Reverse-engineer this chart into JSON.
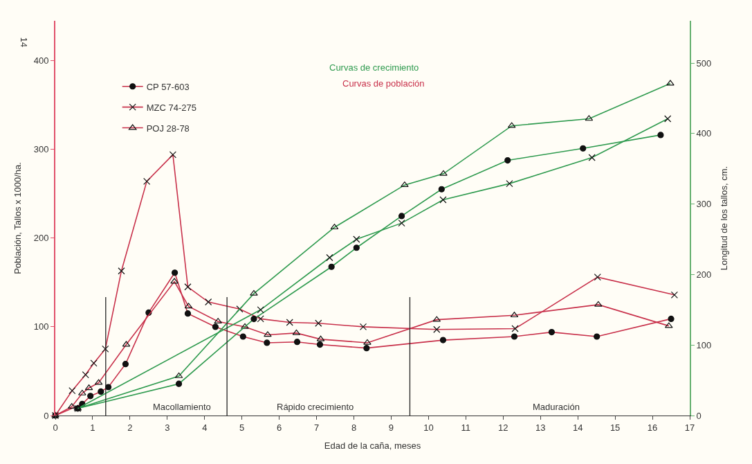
{
  "chart_data": {
    "type": "line",
    "xlabel": "Edad de la caña, meses",
    "ylabel": "Población, Tallos x 1000/ha.",
    "y2label": "Longitud de los tallos, cm.",
    "xlim": [
      0,
      17
    ],
    "xticks": [
      0,
      1,
      2,
      3,
      4,
      5,
      6,
      7,
      8,
      9,
      10,
      11,
      12,
      13,
      14,
      15,
      16,
      17
    ],
    "ylim": [
      0,
      445
    ],
    "yticks": [
      0,
      100,
      200,
      300,
      400
    ],
    "y2lim": [
      0,
      560
    ],
    "y2ticks": [
      0,
      100,
      200,
      300,
      400,
      500
    ],
    "grid": false,
    "legend": "top left",
    "line_style": "solid",
    "series": [
      {
        "name": "CP 57-603",
        "color": "#c8304a",
        "marker": "circle",
        "x": [
          0,
          0.72,
          0.94,
          1.22,
          1.42,
          1.88,
          2.5,
          3.2,
          3.55,
          4.29,
          5.03,
          5.67,
          6.48,
          7.09,
          8.34,
          10.39,
          12.3,
          13.3,
          14.51,
          16.5
        ],
        "values": [
          0,
          13,
          22,
          27,
          32,
          58,
          116,
          161,
          115,
          100,
          89,
          82,
          83,
          80,
          76,
          85,
          89,
          94,
          89,
          109
        ]
      },
      {
        "name": "MZC 74-275",
        "color": "#c8304a",
        "marker": "cross",
        "x": [
          0,
          0.45,
          0.81,
          1.03,
          1.34,
          1.77,
          2.45,
          3.15,
          3.55,
          4.1,
          4.94,
          5.5,
          6.28,
          7.05,
          8.25,
          10.22,
          12.32,
          14.53,
          16.59
        ],
        "values": [
          0,
          28,
          46,
          59,
          75,
          163,
          264,
          294,
          145,
          128,
          120,
          109,
          105,
          104,
          100,
          97,
          98,
          156,
          136
        ]
      },
      {
        "name": "POJ 28-78",
        "color": "#c8304a",
        "marker": "triangle",
        "x": [
          0,
          0.44,
          0.72,
          0.9,
          1.16,
          1.9,
          3.19,
          3.57,
          4.36,
          5.08,
          5.69,
          6.46,
          7.11,
          8.36,
          10.22,
          12.3,
          14.55,
          16.44
        ],
        "values": [
          0,
          10,
          25,
          31,
          37,
          80,
          151,
          123,
          106,
          100,
          91,
          93,
          86,
          82,
          108,
          113,
          125,
          101
        ]
      },
      {
        "color": "#2e9a4e",
        "marker": "circle",
        "axis": "y2",
        "x": [
          0.6,
          3.31,
          5.32,
          7.4,
          8.07,
          9.28,
          10.35,
          12.12,
          14.14,
          16.22
        ],
        "values": [
          10,
          45,
          137,
          211,
          238,
          283,
          321,
          362,
          379,
          398
        ]
      },
      {
        "color": "#2e9a4e",
        "marker": "cross",
        "axis": "y2",
        "x": [
          0.6,
          5.5,
          7.35,
          8.07,
          9.28,
          10.39,
          12.17,
          14.38,
          16.41
        ],
        "values": [
          10,
          150,
          224,
          250,
          273,
          306,
          329,
          366,
          421
        ]
      },
      {
        "color": "#2e9a4e",
        "marker": "triangle",
        "axis": "y2",
        "x": [
          0.6,
          3.31,
          5.32,
          7.48,
          9.36,
          10.4,
          12.23,
          14.3,
          16.48
        ],
        "values": [
          10,
          56,
          173,
          267,
          327,
          343,
          411,
          421,
          471
        ]
      }
    ],
    "ref_lines": [
      {
        "axis": "x",
        "value": 1.35,
        "color": "#222222"
      },
      {
        "axis": "x",
        "value": 4.6,
        "color": "#222222"
      },
      {
        "axis": "x",
        "value": 9.5,
        "color": "#222222"
      }
    ],
    "annotations": [
      "Curvas de crecimiento",
      "Curvas de población",
      "Macollamiento",
      "Rápido crecimiento",
      "Maduración",
      "14"
    ]
  }
}
